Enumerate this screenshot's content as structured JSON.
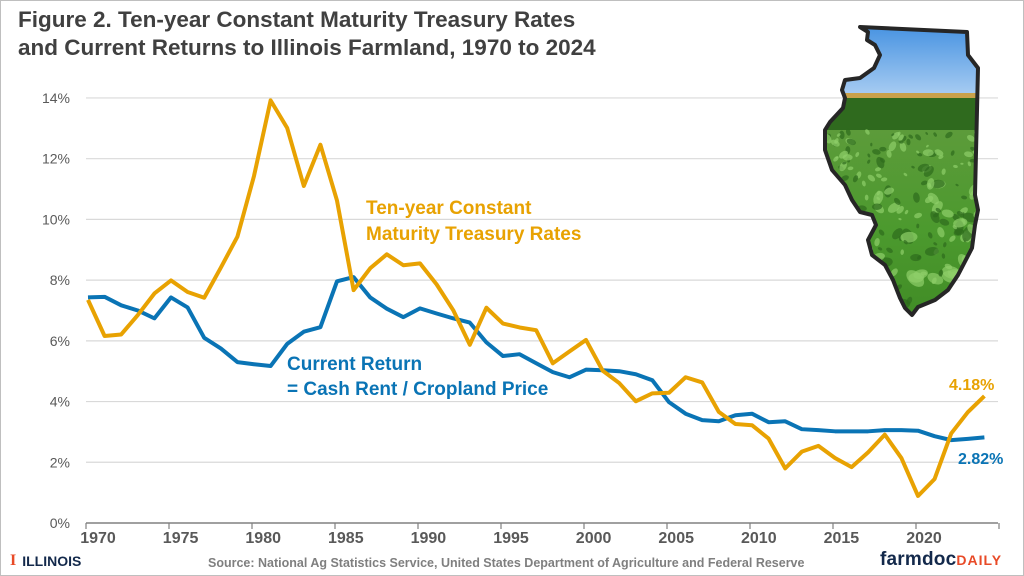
{
  "title_line1": "Figure 2. Ten-year Constant Maturity Treasury Rates",
  "title_line2": "and Current Returns to Illinois Farmland, 1970 to 2024",
  "source": "Source: National Ag Statistics Service, United States Department of Agriculture and Federal Reserve",
  "logos": {
    "illinois": "ILLINOIS",
    "farmdoc": "farmdoc",
    "farmdoc_daily": "DAILY"
  },
  "colors": {
    "treasury": "#e8a202",
    "current_return": "#0a74b5",
    "grid": "#d9d9d9",
    "illinois_orange": "#e84a27",
    "illinois_blue": "#13294b"
  },
  "chart_data": {
    "type": "line",
    "title": "Figure 2. Ten-year Constant Maturity Treasury Rates and Current Returns to Illinois Farmland, 1970 to 2024",
    "xlim": [
      1970,
      2025
    ],
    "ylim": [
      0,
      14
    ],
    "yticks": [
      "0%",
      "2%",
      "4%",
      "6%",
      "8%",
      "10%",
      "12%",
      "14%"
    ],
    "xticks": [
      "1970",
      "1975",
      "1980",
      "1985",
      "1990",
      "1995",
      "2000",
      "2005",
      "2010",
      "2015",
      "2020"
    ],
    "grid": true,
    "x_start": 1970,
    "series": [
      {
        "name": "Ten-year Constant Maturity Treasury Rates",
        "label_lines": [
          "Ten-year Constant",
          "Maturity Treasury Rates"
        ],
        "end_label": "4.18%",
        "values": [
          7.35,
          6.16,
          6.21,
          6.85,
          7.56,
          7.99,
          7.61,
          7.42,
          8.41,
          9.43,
          11.43,
          13.92,
          13.01,
          11.1,
          12.46,
          10.62,
          7.67,
          8.39,
          8.85,
          8.49,
          8.55,
          7.86,
          7.01,
          5.87,
          7.09,
          6.57,
          6.44,
          6.35,
          5.26,
          5.65,
          6.03,
          5.02,
          4.61,
          4.01,
          4.27,
          4.29,
          4.8,
          4.63,
          3.66,
          3.26,
          3.22,
          2.78,
          1.8,
          2.35,
          2.54,
          2.14,
          1.84,
          2.33,
          2.91,
          2.14,
          0.89,
          1.45,
          2.95,
          3.65,
          4.18
        ]
      },
      {
        "name": "Current Return = Cash Rent / Cropland Price",
        "label_lines": [
          "Current Return",
          "= Cash Rent / Cropland Price"
        ],
        "end_label": "2.82%",
        "values": [
          7.43,
          7.45,
          7.17,
          7.0,
          6.74,
          7.43,
          7.1,
          6.1,
          5.75,
          5.3,
          5.23,
          5.17,
          5.9,
          6.3,
          6.45,
          7.96,
          8.1,
          7.43,
          7.06,
          6.78,
          7.07,
          6.9,
          6.74,
          6.6,
          5.95,
          5.5,
          5.56,
          5.26,
          4.97,
          4.8,
          5.05,
          5.03,
          5.0,
          4.9,
          4.7,
          3.98,
          3.6,
          3.39,
          3.35,
          3.55,
          3.6,
          3.32,
          3.35,
          3.09,
          3.06,
          3.02,
          3.02,
          3.02,
          3.06,
          3.06,
          3.04,
          2.86,
          2.73,
          2.77,
          2.82
        ]
      }
    ]
  }
}
